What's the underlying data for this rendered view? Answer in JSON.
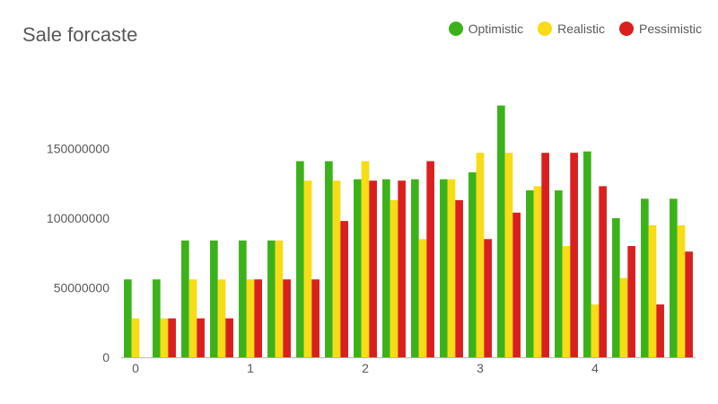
{
  "chart_data": {
    "type": "bar",
    "title": "Sale forcaste",
    "xlabel": "",
    "ylabel": "",
    "ylim": [
      0,
      202000000
    ],
    "yticks": [
      0,
      50000000,
      100000000,
      150000000
    ],
    "ytick_labels": [
      "0",
      "50000000",
      "100000000",
      "150000000"
    ],
    "x": [
      0,
      0.25,
      0.5,
      0.75,
      1,
      1.25,
      1.5,
      1.75,
      2,
      2.25,
      2.5,
      2.75,
      3,
      3.25,
      3.5,
      3.75,
      4,
      4.25,
      4.5,
      4.75
    ],
    "xlim": [
      -0.125,
      4.875
    ],
    "xticks": [
      0,
      1,
      2,
      3,
      4
    ],
    "xtick_labels": [
      "0",
      "1",
      "2",
      "3",
      "4"
    ],
    "legend_position": "top-right",
    "grid": false,
    "series": [
      {
        "name": "Optimistic",
        "color": "#3cb21a",
        "values": [
          56000000,
          56000000,
          84000000,
          84000000,
          84000000,
          84000000,
          141000000,
          141000000,
          128000000,
          128000000,
          128000000,
          128000000,
          133000000,
          181000000,
          120000000,
          120000000,
          148000000,
          100000000,
          114000000,
          114000000
        ]
      },
      {
        "name": "Realistic",
        "color": "#f7dc16",
        "values": [
          28000000,
          28000000,
          56000000,
          56000000,
          56000000,
          84000000,
          127000000,
          127000000,
          141000000,
          113000000,
          85000000,
          128000000,
          147000000,
          147000000,
          123000000,
          80000000,
          38000000,
          57000000,
          95000000,
          95000000
        ]
      },
      {
        "name": "Pessimistic",
        "color": "#d9201e",
        "values": [
          0,
          28000000,
          28000000,
          28000000,
          56000000,
          56000000,
          56000000,
          98000000,
          127000000,
          127000000,
          141000000,
          113000000,
          85000000,
          104000000,
          147000000,
          147000000,
          123000000,
          80000000,
          38000000,
          76000000
        ]
      }
    ]
  }
}
